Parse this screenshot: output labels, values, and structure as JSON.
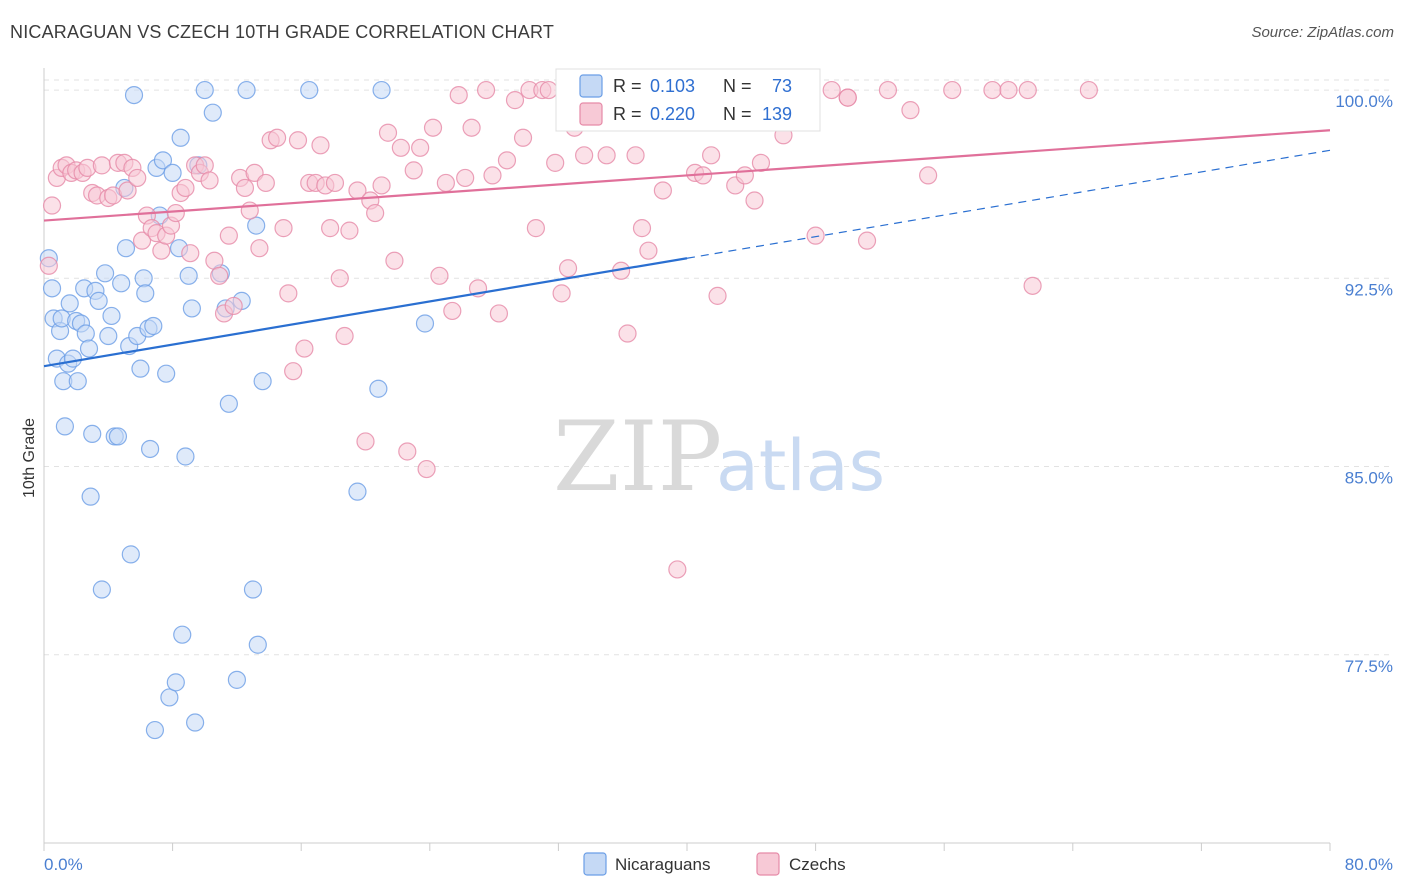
{
  "title": "NICARAGUAN VS CZECH 10TH GRADE CORRELATION CHART",
  "source": "Source: ZipAtlas.com",
  "watermark": {
    "zip": "ZIP",
    "atlas": "atlas"
  },
  "chart_data": {
    "type": "scatter",
    "ylabel": "10th Grade",
    "xlim": [
      0,
      80
    ],
    "ylim": [
      70,
      100.8
    ],
    "x_tick_labels": {
      "min": "0.0%",
      "max": "80.0%"
    },
    "y_ticks": [
      {
        "value": 100.0,
        "label": "100.0%"
      },
      {
        "value": 92.5,
        "label": "92.5%"
      },
      {
        "value": 85.0,
        "label": "85.0%"
      },
      {
        "value": 77.5,
        "label": "77.5%"
      }
    ],
    "grid": "horizontal-dashed",
    "legend_position": "bottom",
    "stats_position": "top-center",
    "series": [
      {
        "name": "Nicaraguans",
        "color": "#6b9ee6",
        "fill": "#c5d9f5",
        "stats": {
          "r_label": "R =",
          "r": "0.103",
          "n_label": "N =",
          "n": "73"
        },
        "trend": {
          "x0": 0,
          "y0": 89.0,
          "x1": 40,
          "y1": 93.3,
          "dash_x1": 80,
          "dash_y1": 97.6
        },
        "points": [
          [
            0.3,
            93.3
          ],
          [
            0.5,
            92.1
          ],
          [
            0.6,
            90.9
          ],
          [
            0.8,
            89.3
          ],
          [
            1.0,
            90.4
          ],
          [
            1.1,
            90.9
          ],
          [
            1.2,
            88.4
          ],
          [
            1.3,
            86.6
          ],
          [
            1.5,
            89.1
          ],
          [
            1.6,
            91.5
          ],
          [
            1.8,
            89.3
          ],
          [
            2.0,
            90.8
          ],
          [
            2.1,
            88.4
          ],
          [
            2.3,
            90.7
          ],
          [
            2.5,
            92.1
          ],
          [
            2.6,
            90.3
          ],
          [
            2.8,
            89.7
          ],
          [
            2.9,
            83.8
          ],
          [
            3.0,
            86.3
          ],
          [
            3.2,
            92.0
          ],
          [
            3.4,
            91.6
          ],
          [
            3.6,
            80.1
          ],
          [
            3.8,
            92.7
          ],
          [
            4.0,
            90.2
          ],
          [
            4.2,
            91.0
          ],
          [
            4.4,
            86.2
          ],
          [
            4.6,
            86.2
          ],
          [
            4.8,
            92.3
          ],
          [
            5.0,
            96.1
          ],
          [
            5.1,
            93.7
          ],
          [
            5.3,
            89.8
          ],
          [
            5.4,
            81.5
          ],
          [
            5.6,
            99.8
          ],
          [
            5.8,
            90.2
          ],
          [
            6.0,
            88.9
          ],
          [
            6.2,
            92.5
          ],
          [
            6.3,
            91.9
          ],
          [
            6.5,
            90.5
          ],
          [
            6.6,
            85.7
          ],
          [
            6.8,
            90.6
          ],
          [
            6.9,
            74.5
          ],
          [
            7.0,
            96.9
          ],
          [
            7.2,
            95.0
          ],
          [
            7.4,
            97.2
          ],
          [
            7.6,
            88.7
          ],
          [
            7.8,
            75.8
          ],
          [
            8.0,
            96.7
          ],
          [
            8.2,
            76.4
          ],
          [
            8.4,
            93.7
          ],
          [
            8.5,
            98.1
          ],
          [
            8.6,
            78.3
          ],
          [
            8.8,
            85.4
          ],
          [
            9.0,
            92.6
          ],
          [
            9.2,
            91.3
          ],
          [
            9.4,
            74.8
          ],
          [
            9.6,
            97.0
          ],
          [
            10.0,
            100.0
          ],
          [
            10.5,
            99.1
          ],
          [
            11.0,
            92.7
          ],
          [
            11.3,
            91.3
          ],
          [
            11.5,
            87.5
          ],
          [
            12.0,
            76.5
          ],
          [
            12.3,
            91.6
          ],
          [
            12.6,
            100.0
          ],
          [
            13.0,
            80.1
          ],
          [
            13.2,
            94.6
          ],
          [
            13.3,
            77.9
          ],
          [
            13.6,
            88.4
          ],
          [
            16.5,
            100.0
          ],
          [
            19.5,
            84.0
          ],
          [
            20.8,
            88.1
          ],
          [
            21.0,
            100.0
          ],
          [
            23.7,
            90.7
          ]
        ]
      },
      {
        "name": "Czechs",
        "color": "#e68aa8",
        "fill": "#f7c9d6",
        "stats": {
          "r_label": "R =",
          "r": "0.220",
          "n_label": "N =",
          "n": "139"
        },
        "trend": {
          "x0": 0,
          "y0": 94.8,
          "x1": 80,
          "y1": 98.4
        },
        "points": [
          [
            0.3,
            93.0
          ],
          [
            0.5,
            95.4
          ],
          [
            0.8,
            96.5
          ],
          [
            1.1,
            96.9
          ],
          [
            1.4,
            97.0
          ],
          [
            1.7,
            96.7
          ],
          [
            2.0,
            96.8
          ],
          [
            2.4,
            96.7
          ],
          [
            2.7,
            96.9
          ],
          [
            3.0,
            95.9
          ],
          [
            3.3,
            95.8
          ],
          [
            3.6,
            97.0
          ],
          [
            4.0,
            95.7
          ],
          [
            4.3,
            95.8
          ],
          [
            4.6,
            97.1
          ],
          [
            5.0,
            97.1
          ],
          [
            5.2,
            96.0
          ],
          [
            5.5,
            96.9
          ],
          [
            5.8,
            96.5
          ],
          [
            6.1,
            94.0
          ],
          [
            6.4,
            95.0
          ],
          [
            6.7,
            94.5
          ],
          [
            7.0,
            94.3
          ],
          [
            7.3,
            93.6
          ],
          [
            7.6,
            94.2
          ],
          [
            7.9,
            94.6
          ],
          [
            8.2,
            95.1
          ],
          [
            8.5,
            95.9
          ],
          [
            8.8,
            96.1
          ],
          [
            9.1,
            93.5
          ],
          [
            9.4,
            97.0
          ],
          [
            9.7,
            96.7
          ],
          [
            10.0,
            97.0
          ],
          [
            10.3,
            96.4
          ],
          [
            10.6,
            93.2
          ],
          [
            10.9,
            92.6
          ],
          [
            11.2,
            91.1
          ],
          [
            11.5,
            94.2
          ],
          [
            11.8,
            91.4
          ],
          [
            12.2,
            96.5
          ],
          [
            12.5,
            96.1
          ],
          [
            12.8,
            95.2
          ],
          [
            13.1,
            96.7
          ],
          [
            13.4,
            93.7
          ],
          [
            13.8,
            96.3
          ],
          [
            14.1,
            98.0
          ],
          [
            14.5,
            98.1
          ],
          [
            14.9,
            94.5
          ],
          [
            15.2,
            91.9
          ],
          [
            15.5,
            88.8
          ],
          [
            15.8,
            98.0
          ],
          [
            16.2,
            89.7
          ],
          [
            16.5,
            96.3
          ],
          [
            16.9,
            96.3
          ],
          [
            17.2,
            97.8
          ],
          [
            17.5,
            96.2
          ],
          [
            17.8,
            94.5
          ],
          [
            18.1,
            96.3
          ],
          [
            18.4,
            92.5
          ],
          [
            18.7,
            90.2
          ],
          [
            19.0,
            94.4
          ],
          [
            19.5,
            96.0
          ],
          [
            20.0,
            86.0
          ],
          [
            20.3,
            95.6
          ],
          [
            20.6,
            95.1
          ],
          [
            21.0,
            96.2
          ],
          [
            21.4,
            98.3
          ],
          [
            21.8,
            93.2
          ],
          [
            22.2,
            97.7
          ],
          [
            22.6,
            85.6
          ],
          [
            23.0,
            96.8
          ],
          [
            23.4,
            97.7
          ],
          [
            23.8,
            84.9
          ],
          [
            24.2,
            98.5
          ],
          [
            24.6,
            92.6
          ],
          [
            25.0,
            96.3
          ],
          [
            25.4,
            91.2
          ],
          [
            25.8,
            99.8
          ],
          [
            26.2,
            96.5
          ],
          [
            26.6,
            98.5
          ],
          [
            27.0,
            92.1
          ],
          [
            27.5,
            100.0
          ],
          [
            27.9,
            96.6
          ],
          [
            28.3,
            91.1
          ],
          [
            28.8,
            97.2
          ],
          [
            29.3,
            99.6
          ],
          [
            29.8,
            98.1
          ],
          [
            30.2,
            100.0
          ],
          [
            30.6,
            94.5
          ],
          [
            31.0,
            100.0
          ],
          [
            31.4,
            100.0
          ],
          [
            31.8,
            97.1
          ],
          [
            32.2,
            91.9
          ],
          [
            32.6,
            92.9
          ],
          [
            33.0,
            98.5
          ],
          [
            33.6,
            97.4
          ],
          [
            34.0,
            98.8
          ],
          [
            34.5,
            100.0
          ],
          [
            35.0,
            97.4
          ],
          [
            35.5,
            100.0
          ],
          [
            35.9,
            92.8
          ],
          [
            36.3,
            90.3
          ],
          [
            36.8,
            97.4
          ],
          [
            37.2,
            94.5
          ],
          [
            37.6,
            93.6
          ],
          [
            38.0,
            100.0
          ],
          [
            38.5,
            96.0
          ],
          [
            38.9,
            99.0
          ],
          [
            39.4,
            80.9
          ],
          [
            40.0,
            100.0
          ],
          [
            40.5,
            96.7
          ],
          [
            41.0,
            96.6
          ],
          [
            41.5,
            97.4
          ],
          [
            41.9,
            91.8
          ],
          [
            42.5,
            100.0
          ],
          [
            43.0,
            96.2
          ],
          [
            43.6,
            96.6
          ],
          [
            44.2,
            95.6
          ],
          [
            44.6,
            97.1
          ],
          [
            45.0,
            100.0
          ],
          [
            45.6,
            99.1
          ],
          [
            46.0,
            98.2
          ],
          [
            46.4,
            99.9
          ],
          [
            47.0,
            99.0
          ],
          [
            47.5,
            99.3
          ],
          [
            48.0,
            94.2
          ],
          [
            49.0,
            100.0
          ],
          [
            50.0,
            99.7
          ],
          [
            51.2,
            94.0
          ],
          [
            52.5,
            100.0
          ],
          [
            53.9,
            99.2
          ],
          [
            55.0,
            96.6
          ],
          [
            56.5,
            100.0
          ],
          [
            59.0,
            100.0
          ],
          [
            60.0,
            100.0
          ],
          [
            61.2,
            100.0
          ],
          [
            61.5,
            92.2
          ],
          [
            65.0,
            100.0
          ],
          [
            50.0,
            99.7
          ]
        ]
      }
    ]
  }
}
